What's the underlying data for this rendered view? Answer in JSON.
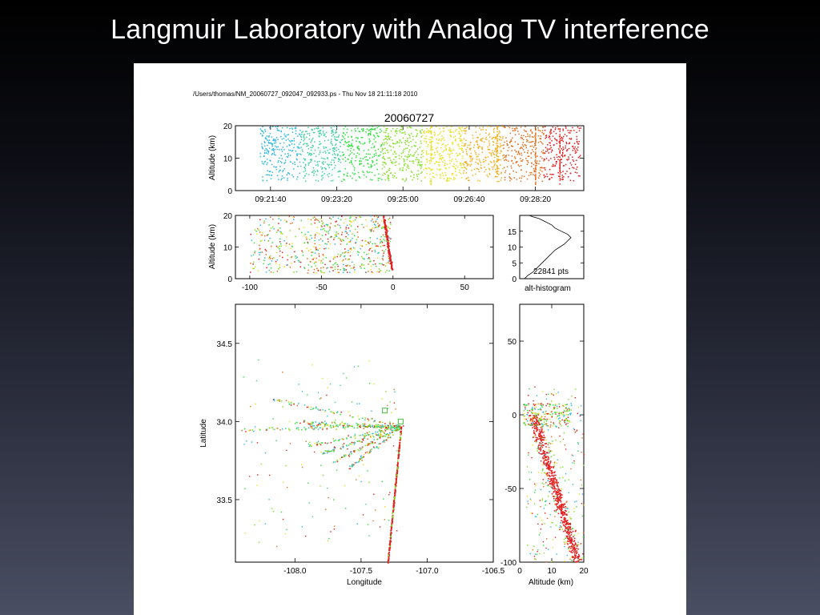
{
  "slide": {
    "title": "Langmuir Laboratory with Analog TV interference"
  },
  "figure": {
    "file_header": "/Users/thomas/NM_20060727_092047_092933.ps - Thu Nov 18 21:11:18 2010"
  },
  "chart_data": [
    {
      "type": "scatter",
      "title": "20060727",
      "xlabel": "",
      "ylabel": "Altitude (km)",
      "xlim": [
        "09:20:47",
        "09:29:33"
      ],
      "ylim": [
        0,
        20
      ],
      "x_ticks": [
        "09:21:40",
        "09:23:20",
        "09:25:00",
        "09:26:40",
        "09:28:20"
      ],
      "y_ticks": [
        0,
        10,
        20
      ],
      "color_encoding": "time",
      "colors": [
        "#30b8e0",
        "#40d0a0",
        "#30e040",
        "#80e020",
        "#e8e020",
        "#f0b020",
        "#e07020",
        "#e02020"
      ]
    },
    {
      "type": "scatter",
      "xlabel": "",
      "ylabel": "Altitude (km)",
      "xlim": [
        -110,
        70
      ],
      "ylim": [
        0,
        20
      ],
      "x_ticks": [
        -100,
        -50,
        0,
        50
      ],
      "y_ticks": [
        0,
        10,
        20
      ]
    },
    {
      "type": "line",
      "xlabel": "alt-histogram",
      "ylim": [
        0,
        20
      ],
      "y_ticks": [
        0,
        5,
        10,
        15
      ],
      "annotation": "22841 pts",
      "x": [
        3,
        5,
        8,
        10,
        12,
        14,
        16,
        18,
        20,
        22,
        25,
        28,
        30,
        32,
        30,
        26,
        22,
        20,
        16,
        14,
        12,
        10,
        8,
        6
      ],
      "y": [
        0,
        1,
        2,
        3,
        4,
        5,
        6,
        7,
        8,
        9,
        10,
        11,
        12,
        13,
        14,
        15,
        16,
        17,
        18,
        18.5,
        19,
        19.3,
        19.6,
        20
      ]
    },
    {
      "type": "scatter",
      "xlabel": "Longitude",
      "ylabel": "Latitude",
      "xlim": [
        -108.45,
        -106.5
      ],
      "ylim": [
        33.1,
        34.75
      ],
      "x_ticks": [
        "-108.0",
        "-107.5",
        "-107.0",
        "-106.5"
      ],
      "y_ticks": [
        "33.5",
        "34.0",
        "34.5"
      ]
    },
    {
      "type": "scatter",
      "xlabel": "Altitude (km)",
      "ylabel": "",
      "xlim": [
        0,
        20
      ],
      "ylim": [
        -100,
        75
      ],
      "x_ticks": [
        0,
        10,
        20
      ],
      "y_ticks": [
        -100,
        -50,
        0,
        50
      ]
    }
  ]
}
